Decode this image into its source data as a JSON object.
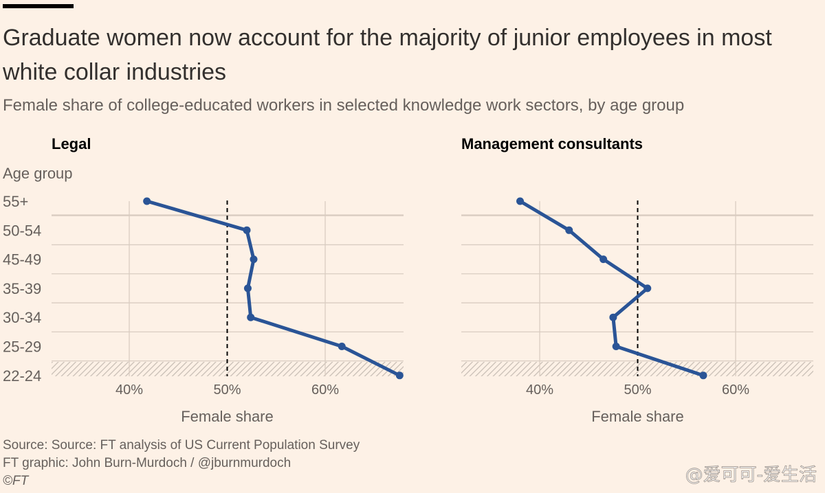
{
  "header": {
    "title": "Graduate women now account for the majority of junior employees in most white collar industries",
    "subtitle": "Female share of college-educated workers in selected knowledge work sectors, by age group"
  },
  "chart_data": [
    {
      "type": "line",
      "title": "Legal",
      "ylabel": "Age group",
      "xlabel": "Female share",
      "categories": [
        "55+",
        "50-54",
        "45-49",
        "35-39",
        "30-34",
        "25-29",
        "22-24"
      ],
      "values": [
        41.8,
        52.0,
        52.7,
        52.1,
        52.4,
        61.7,
        67.6
      ],
      "x_ticks": [
        "40%",
        "50%",
        "60%"
      ],
      "x_tick_values": [
        40,
        50,
        60
      ],
      "xlim": [
        32,
        68
      ],
      "reference_line": 50
    },
    {
      "type": "line",
      "title": "Management consultants",
      "ylabel": "",
      "xlabel": "Female share",
      "categories": [
        "55+",
        "50-54",
        "45-49",
        "35-39",
        "30-34",
        "25-29",
        "22-24"
      ],
      "values": [
        38.0,
        43.0,
        46.5,
        51.0,
        47.5,
        47.8,
        56.7
      ],
      "x_ticks": [
        "40%",
        "50%",
        "60%"
      ],
      "x_tick_values": [
        40,
        50,
        60
      ],
      "xlim": [
        32,
        68
      ],
      "reference_line": 50
    }
  ],
  "colors": {
    "line": "#2a5496",
    "background": "#fdf1e6",
    "grid": "#d9ccc1",
    "reference": "#000000",
    "hatch": "#c7bdb4"
  },
  "footer": {
    "source": "Source: Source: FT analysis of US Current Population Survey",
    "credit": "FT graphic: John Burn-Murdoch / @jburnmurdoch",
    "copyright": "©FT",
    "watermark": "@爱可可-爱生活"
  }
}
